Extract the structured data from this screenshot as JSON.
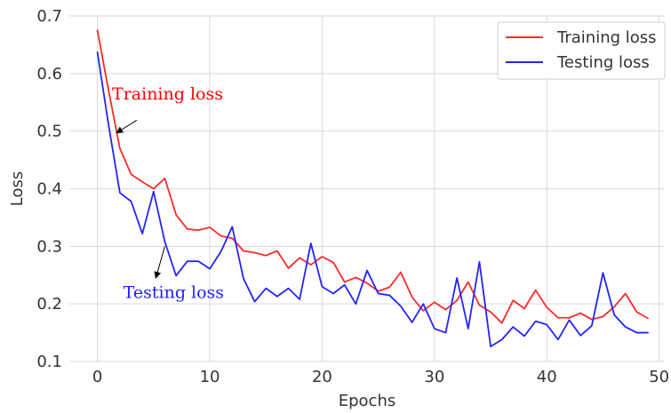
{
  "chart_data": {
    "type": "line",
    "xlabel": "Epochs",
    "ylabel": "Loss",
    "xlim": [
      -2.5,
      50.5
    ],
    "ylim": [
      0.1,
      0.7
    ],
    "x_ticks": [
      0,
      10,
      20,
      30,
      40,
      50
    ],
    "x_tick_labels": [
      "0",
      "10",
      "20",
      "30",
      "40",
      "50"
    ],
    "y_ticks": [
      0.1,
      0.2,
      0.3,
      0.4,
      0.5,
      0.6,
      0.7
    ],
    "y_tick_labels": [
      "0.1",
      "0.2",
      "0.3",
      "0.4",
      "0.5",
      "0.6",
      "0.7"
    ],
    "grid": true,
    "legend_position": "top-right",
    "x": [
      0,
      1,
      2,
      3,
      4,
      5,
      6,
      7,
      8,
      9,
      10,
      11,
      12,
      13,
      14,
      15,
      16,
      17,
      18,
      19,
      20,
      21,
      22,
      23,
      24,
      25,
      26,
      27,
      28,
      29,
      30,
      31,
      32,
      33,
      34,
      35,
      36,
      37,
      38,
      39,
      40,
      41,
      42,
      43,
      44,
      45,
      46,
      47,
      48,
      49
    ],
    "series": [
      {
        "name": "Training loss",
        "color": "#ff2a2a",
        "values": [
          0.675,
          0.57,
          0.47,
          0.425,
          0.412,
          0.4,
          0.418,
          0.355,
          0.33,
          0.328,
          0.333,
          0.318,
          0.314,
          0.292,
          0.289,
          0.284,
          0.292,
          0.262,
          0.28,
          0.268,
          0.282,
          0.272,
          0.238,
          0.246,
          0.236,
          0.222,
          0.229,
          0.255,
          0.212,
          0.188,
          0.203,
          0.19,
          0.206,
          0.238,
          0.198,
          0.186,
          0.167,
          0.206,
          0.192,
          0.224,
          0.194,
          0.176,
          0.176,
          0.184,
          0.173,
          0.178,
          0.195,
          0.218,
          0.186,
          0.175
        ]
      },
      {
        "name": "Testing loss",
        "color": "#2424ff",
        "values": [
          0.637,
          0.51,
          0.393,
          0.378,
          0.322,
          0.395,
          0.308,
          0.249,
          0.274,
          0.274,
          0.261,
          0.291,
          0.334,
          0.244,
          0.204,
          0.227,
          0.213,
          0.227,
          0.208,
          0.305,
          0.23,
          0.218,
          0.233,
          0.2,
          0.258,
          0.218,
          0.215,
          0.196,
          0.168,
          0.2,
          0.157,
          0.15,
          0.245,
          0.157,
          0.273,
          0.126,
          0.138,
          0.16,
          0.144,
          0.17,
          0.164,
          0.138,
          0.172,
          0.145,
          0.162,
          0.254,
          0.181,
          0.16,
          0.15,
          0.15
        ]
      }
    ],
    "annotations": [
      {
        "text": "Training loss",
        "color": "#ff0000",
        "x_data": 1.3,
        "y_data": 0.555,
        "arrow_from": [
          3.5,
          0.519
        ],
        "arrow_to": [
          1.7,
          0.497
        ]
      },
      {
        "text": "Testing loss",
        "color": "#1f1fff",
        "x_data": 2.3,
        "y_data": 0.21,
        "arrow_from": [
          6.0,
          0.3
        ],
        "arrow_to": [
          5.2,
          0.245
        ]
      }
    ]
  }
}
